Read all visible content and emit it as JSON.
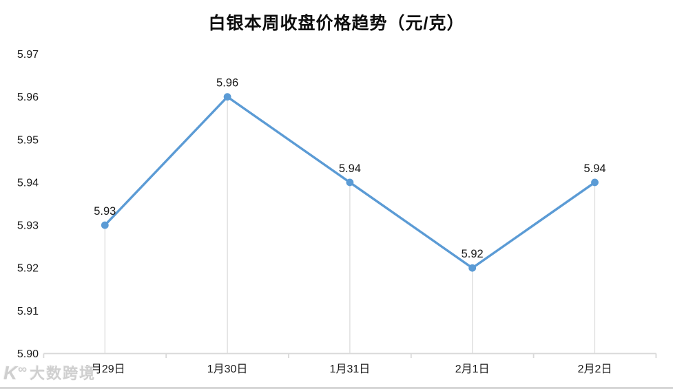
{
  "chart_data": {
    "type": "line",
    "title": "白银本周收盘价格趋势（元/克）",
    "categories": [
      "1月29日",
      "1月30日",
      "1月31日",
      "2月1日",
      "2月2日"
    ],
    "values": [
      5.93,
      5.96,
      5.94,
      5.92,
      5.94
    ],
    "data_labels": [
      "5.93",
      "5.96",
      "5.94",
      "5.92",
      "5.94"
    ],
    "y_ticks": [
      5.9,
      5.91,
      5.92,
      5.93,
      5.94,
      5.95,
      5.96,
      5.97
    ],
    "ylim": [
      5.9,
      5.97
    ],
    "xlabel": "",
    "ylabel": "",
    "legend": "none",
    "grid": "none",
    "drop_lines": true,
    "line_color": "#5B9BD5",
    "marker_color": "#5B9BD5",
    "axis_color": "#D9D9D9",
    "label_color": "#1a1a1a"
  },
  "watermark": {
    "logo_k": "K",
    "logo_sup": "∞",
    "text": "大数跨境"
  }
}
